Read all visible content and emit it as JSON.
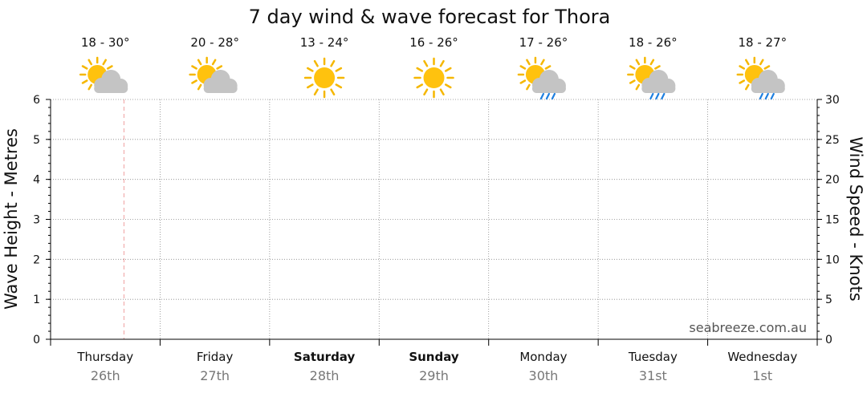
{
  "chart_data": {
    "type": "line",
    "title": "7 day wind & wave forecast for Thora",
    "y_left": {
      "label": "Wave Height - Metres",
      "range": [
        0,
        6
      ],
      "ticks": [
        "0",
        "1",
        "2",
        "3",
        "4",
        "5",
        "6"
      ]
    },
    "y_right": {
      "label": "Wind Speed - Knots",
      "range": [
        0,
        30
      ],
      "ticks": [
        "0",
        "5",
        "10",
        "15",
        "20",
        "25",
        "30"
      ]
    },
    "grid": true,
    "days": [
      {
        "name": "Thursday",
        "date": "26th",
        "bold": false,
        "temp": "18 - 30°",
        "icon": "sun-cloud-icon"
      },
      {
        "name": "Friday",
        "date": "27th",
        "bold": false,
        "temp": "20 - 28°",
        "icon": "sun-cloud-icon"
      },
      {
        "name": "Saturday",
        "date": "28th",
        "bold": true,
        "temp": "13 - 24°",
        "icon": "sun-icon"
      },
      {
        "name": "Sunday",
        "date": "29th",
        "bold": true,
        "temp": "16 - 26°",
        "icon": "sun-icon"
      },
      {
        "name": "Monday",
        "date": "30th",
        "bold": false,
        "temp": "17 - 26°",
        "icon": "sun-cloud-rain-icon"
      },
      {
        "name": "Tuesday",
        "date": "31st",
        "bold": false,
        "temp": "18 - 26°",
        "icon": "sun-cloud-rain-icon"
      },
      {
        "name": "Wednesday",
        "date": "1st",
        "bold": false,
        "temp": "18 - 27°",
        "icon": "sun-cloud-rain-icon"
      }
    ],
    "series": [],
    "now_marker_day_fraction": 0.67,
    "watermark": "seabreeze.com.au"
  },
  "colors": {
    "sun": "#FFC20E",
    "sun_rays": "#F5B700",
    "cloud": "#C4C4C4",
    "rain": "#1E7FE0",
    "grid": "#888888",
    "now_marker": "#F0A0A0",
    "day_date": "#777777"
  }
}
